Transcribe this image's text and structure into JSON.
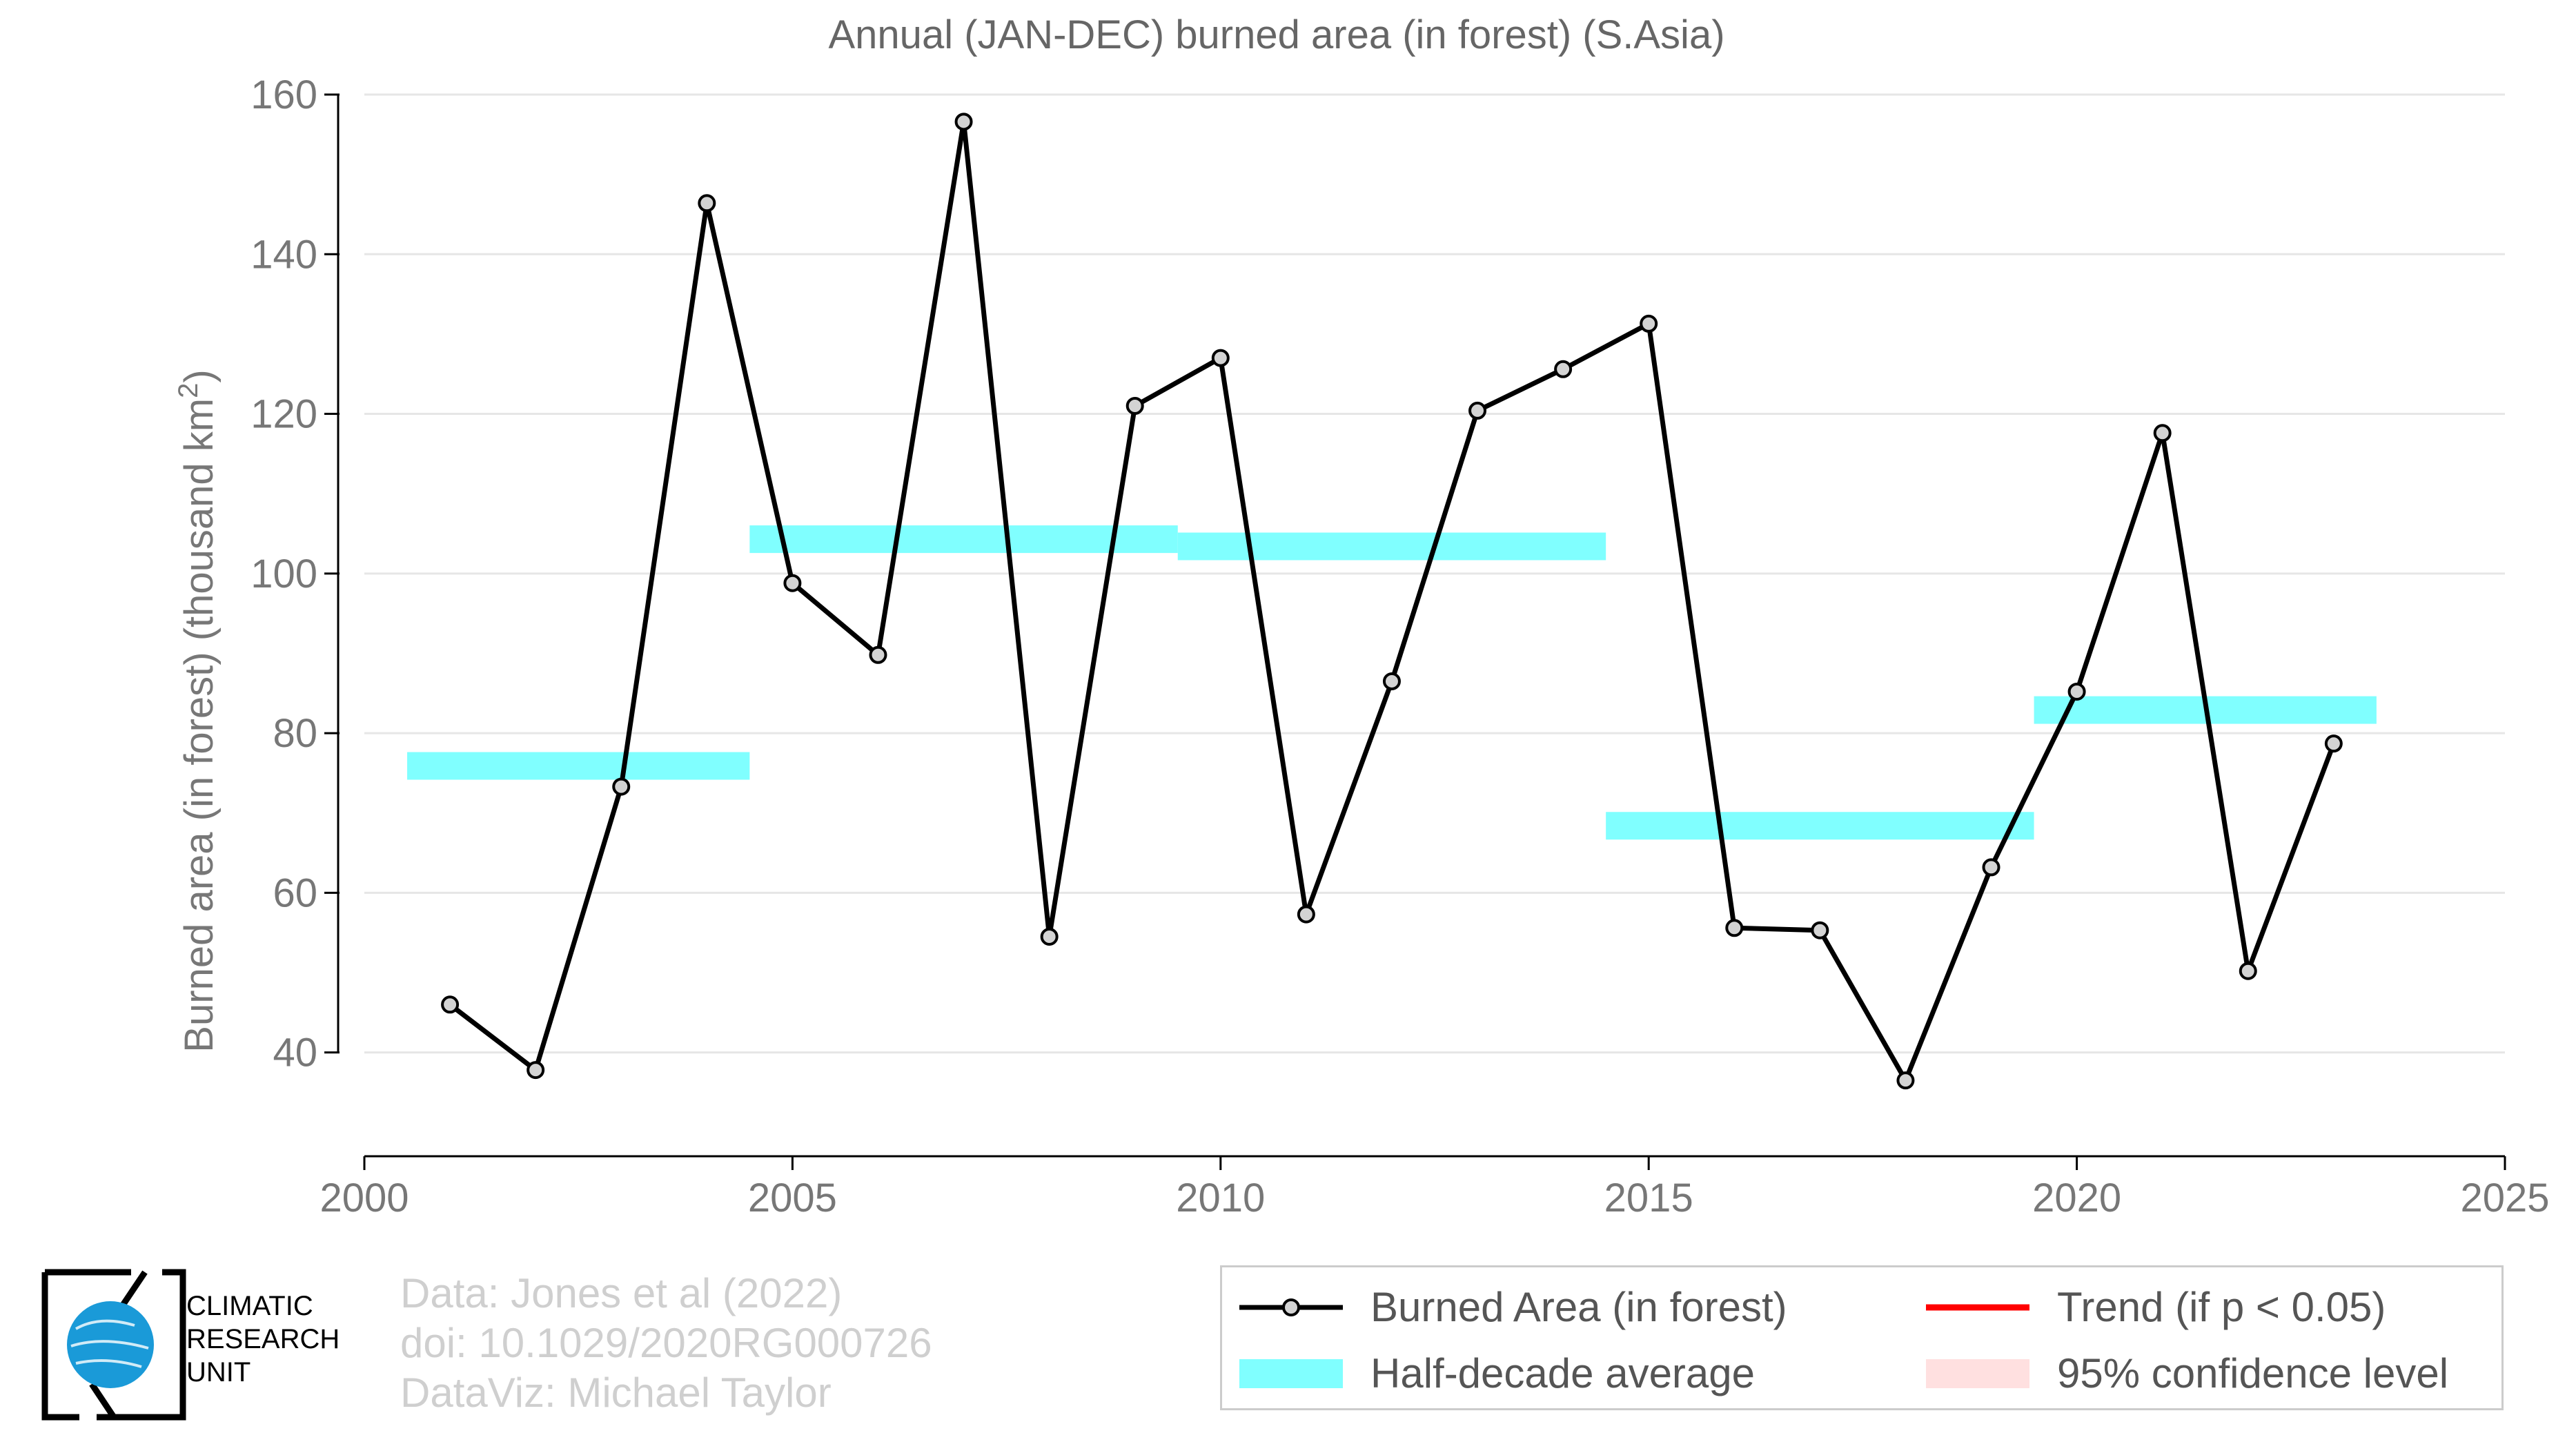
{
  "chart_data": {
    "type": "line",
    "title": "Annual (JAN-DEC) burned area (in forest) (S.Asia)",
    "xlabel": "",
    "ylabel": "Burned area (in forest) (thousand km",
    "ylabel_sup": "2",
    "ylabel_close": ")",
    "xlim": [
      2000,
      2025
    ],
    "ylim": [
      27,
      160
    ],
    "xticks": [
      2000,
      2005,
      2010,
      2015,
      2020,
      2025
    ],
    "yticks": [
      40,
      60,
      80,
      100,
      120,
      140,
      160
    ],
    "grid": true,
    "series": [
      {
        "name": "Burned Area (in forest)",
        "color": "#000000",
        "marker_fill": "#d3d3d3",
        "x": [
          2001,
          2002,
          2003,
          2004,
          2005,
          2006,
          2007,
          2008,
          2009,
          2010,
          2011,
          2012,
          2013,
          2014,
          2015,
          2016,
          2017,
          2018,
          2019,
          2020,
          2021,
          2022,
          2023
        ],
        "y": [
          46.0,
          37.8,
          73.3,
          146.4,
          98.8,
          89.8,
          156.6,
          54.5,
          121.0,
          127.0,
          57.3,
          86.5,
          120.4,
          125.6,
          131.3,
          55.6,
          55.3,
          36.5,
          63.2,
          85.2,
          117.6,
          50.2,
          78.7
        ]
      },
      {
        "name": "Half-decade average",
        "color": "#80ffff",
        "segments": [
          {
            "x0": 2000.5,
            "x1": 2004.5,
            "y": 75.9
          },
          {
            "x0": 2004.5,
            "x1": 2009.5,
            "y": 104.3
          },
          {
            "x0": 2009.5,
            "x1": 2014.5,
            "y": 103.4
          },
          {
            "x0": 2014.5,
            "x1": 2019.5,
            "y": 68.4
          },
          {
            "x0": 2019.5,
            "x1": 2023.5,
            "y": 82.9
          }
        ]
      }
    ],
    "legend": {
      "placement": "bottom-right",
      "items": [
        {
          "label": "Burned Area (in forest)",
          "kind": "line-marker",
          "color": "#000000"
        },
        {
          "label": "Trend (if p < 0.05)",
          "kind": "line",
          "color": "#ff0000"
        },
        {
          "label": "Half-decade average",
          "kind": "band",
          "color": "#80ffff"
        },
        {
          "label": "95% confidence level",
          "kind": "band",
          "color": "#ffe0e0"
        }
      ]
    }
  },
  "footer": {
    "line1": "Data: Jones et al (2022)",
    "line2": "doi: 10.1029/2020RG000726",
    "line3": "DataViz: Michael Taylor"
  },
  "logo": {
    "line1": "CLIMATIC",
    "line2": "RESEARCH",
    "line3": "UNIT",
    "accent": "#1a9ad8"
  }
}
